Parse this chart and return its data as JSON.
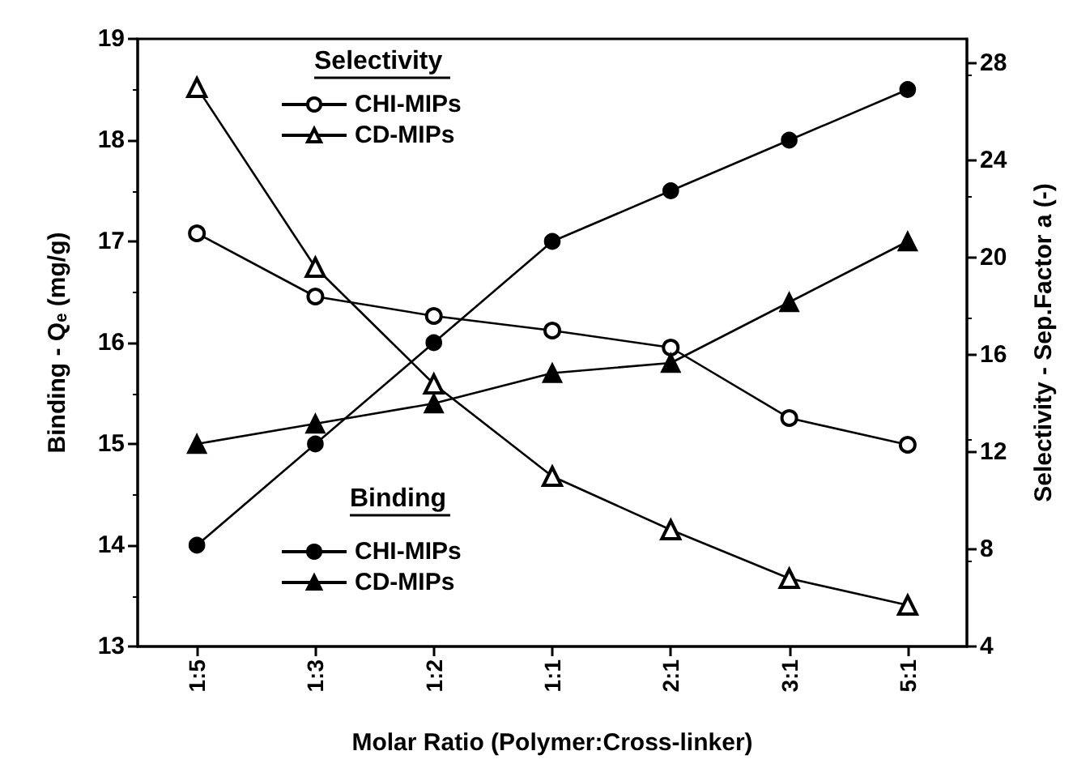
{
  "chart_data": {
    "type": "line",
    "xlabel": "Molar Ratio (Polymer:Cross-linker)",
    "ylabel": "Binding - Qₑ (mg/g)",
    "y2label": "Selectivity - Sep.Factor a (-)",
    "categories": [
      "1:5",
      "1:3",
      "1:2",
      "1:1",
      "2:1",
      "3:1",
      "5:1"
    ],
    "series": [
      {
        "name": "CHI-MIPs",
        "color": "#000000",
        "axis": "y2",
        "marker": "circle",
        "values": [
          21.0,
          18.4,
          17.6,
          17.0,
          16.3,
          13.4,
          12.3
        ]
      },
      {
        "name": "CD-MIPs",
        "color": "#000000",
        "axis": "y2",
        "marker": "triangle",
        "values": [
          27.0,
          19.6,
          14.8,
          11.0,
          8.8,
          6.8,
          5.7
        ]
      },
      {
        "name": "CHI-MIPs",
        "color": "#000000",
        "marker": "circle",
        "values": [
          14.0,
          15.0,
          16.0,
          17.0,
          17.5,
          18.0,
          18.5
        ]
      },
      {
        "name": "CD-MIPs",
        "color": "#000000",
        "marker": "triangle",
        "values": [
          15.0,
          15.2,
          15.4,
          15.7,
          15.8,
          16.4,
          17.0
        ]
      }
    ],
    "annotations": [
      "Selectivity",
      "Binding"
    ],
    "ylim": [
      13,
      19
    ],
    "yticks": [
      13,
      14,
      15,
      16,
      17,
      18,
      19
    ],
    "y2lim": [
      4,
      29
    ],
    "y2ticks": [
      4,
      8,
      12,
      16,
      20,
      24,
      28
    ],
    "legend": "top",
    "grid": false,
    "line_style": "solid"
  }
}
